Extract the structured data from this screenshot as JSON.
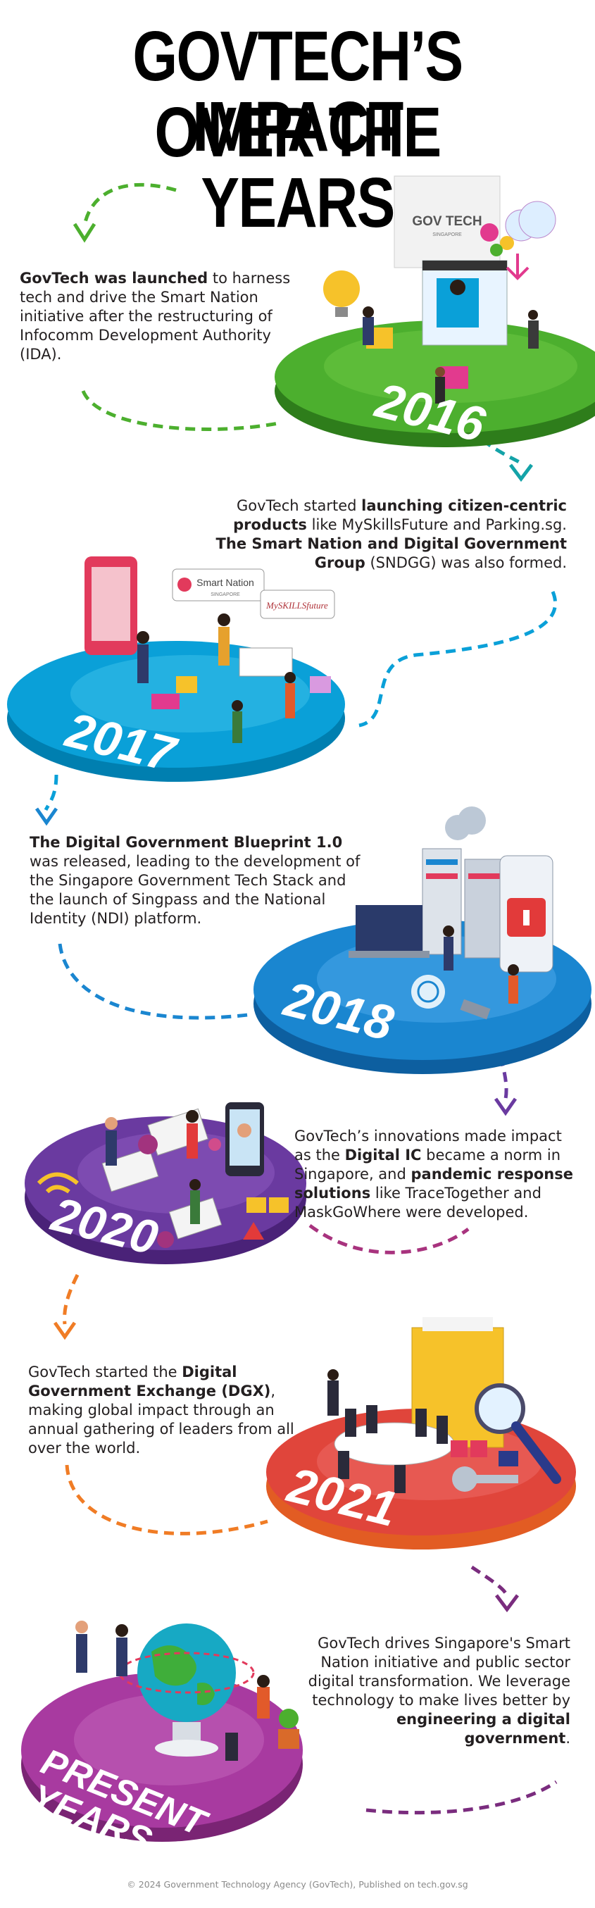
{
  "title": {
    "line1": "GOVTECH’S IMPACT",
    "line2": "OVER THE YEARS"
  },
  "milestones": [
    {
      "year": "2016",
      "color": "#4caf2e",
      "text_bold": "GovTech was launched",
      "text_rest": " to harness tech and drive the Smart Nation initiative after the restructuring of Infocomm Development Authority (IDA).",
      "illustration_labels": [
        "GOV TECH",
        "SINGAPORE"
      ]
    },
    {
      "year": "2017",
      "color": "#0aa0d8",
      "text_parts": [
        "GovTech started ",
        "launching citizen-centric products",
        " like MySkillsFuture and Parking.sg. ",
        "The Smart Nation and Digital Government Group",
        " (SNDGG) was also formed."
      ],
      "illustration_labels": [
        "Smart Nation",
        "SINGAPORE",
        "MySKILLSfuture"
      ]
    },
    {
      "year": "2018",
      "color": "#1a86d0",
      "text_bold": "The Digital Government Blueprint 1.0",
      "text_rest": " was released, leading to the development of the Singapore Government Tech Stack and the launch of Singpass and the National Identity (NDI) platform."
    },
    {
      "year": "2020",
      "color": "#6a3aa0",
      "text_parts": [
        "GovTech’s innovations made impact as the ",
        "Digital IC",
        " became a norm in Singapore, and ",
        "pandemic response solutions",
        " like TraceTogether and MaskGoWhere were developed."
      ]
    },
    {
      "year": "2021",
      "color": "#e0453b",
      "text_parts": [
        "GovTech started the ",
        "Digital Government Exchange (DGX)",
        ", making global impact through an annual gathering of leaders from all over the world."
      ]
    },
    {
      "year": "PRESENT YEARS",
      "year_line1": "PRESENT",
      "year_line2": "YEARS",
      "color": "#a83aa0",
      "text_parts": [
        "GovTech drives Singapore's Smart Nation initiative and public sector digital transformation. We leverage technology to make lives better by ",
        "engineering a digital government",
        "."
      ]
    }
  ],
  "footer": "© 2024 Government Technology Agency (GovTech), Published on tech.gov.sg",
  "colors": {
    "green": "#4caf2e",
    "teal": "#14a3a8",
    "cyan": "#0aa0d8",
    "blue": "#1a86d0",
    "purple": "#6a3aa0",
    "magenta": "#a8337e",
    "orange": "#f07c25",
    "red": "#e0453b",
    "violet": "#7a2c7e"
  }
}
